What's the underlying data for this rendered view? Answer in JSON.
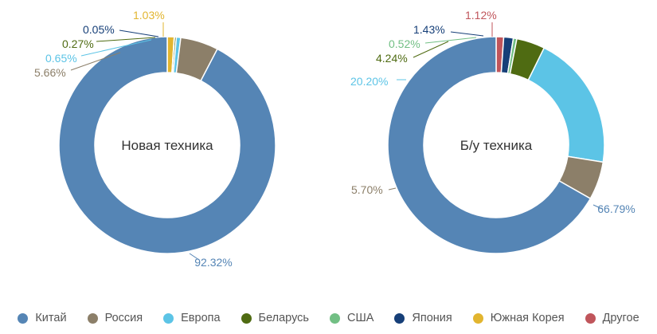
{
  "chart_data": [
    {
      "type": "pie",
      "title": "Новая техника",
      "slices": [
        {
          "category": "Китай",
          "value": 92.32,
          "label": "92.32%"
        },
        {
          "category": "Россия",
          "value": 5.66,
          "label": "5.66%"
        },
        {
          "category": "Европа",
          "value": 0.65,
          "label": "0.65%"
        },
        {
          "category": "Беларусь",
          "value": 0.27,
          "label": "0.27%"
        },
        {
          "category": "Япония",
          "value": 0.05,
          "label": "0.05%"
        },
        {
          "category": "Южная Корея",
          "value": 1.03,
          "label": "1.03%"
        }
      ]
    },
    {
      "type": "pie",
      "title": "Б/у техника",
      "slices": [
        {
          "category": "Китай",
          "value": 66.79,
          "label": "66.79%"
        },
        {
          "category": "Россия",
          "value": 5.7,
          "label": "5.70%"
        },
        {
          "category": "Европа",
          "value": 20.2,
          "label": "20.20%"
        },
        {
          "category": "Беларусь",
          "value": 4.24,
          "label": "4.24%"
        },
        {
          "category": "США",
          "value": 0.52,
          "label": "0.52%"
        },
        {
          "category": "Япония",
          "value": 1.43,
          "label": "1.43%"
        },
        {
          "category": "Другое",
          "value": 1.12,
          "label": "1.12%"
        }
      ]
    }
  ],
  "legend": [
    {
      "name": "Китай",
      "color": "#5585b5"
    },
    {
      "name": "Россия",
      "color": "#8c7f69"
    },
    {
      "name": "Европа",
      "color": "#5cc4e6"
    },
    {
      "name": "Беларусь",
      "color": "#4f6b12"
    },
    {
      "name": "США",
      "color": "#72bf84"
    },
    {
      "name": "Япония",
      "color": "#163f78"
    },
    {
      "name": "Южная Корея",
      "color": "#e2b52f"
    },
    {
      "name": "Другое",
      "color": "#c0555b"
    }
  ]
}
